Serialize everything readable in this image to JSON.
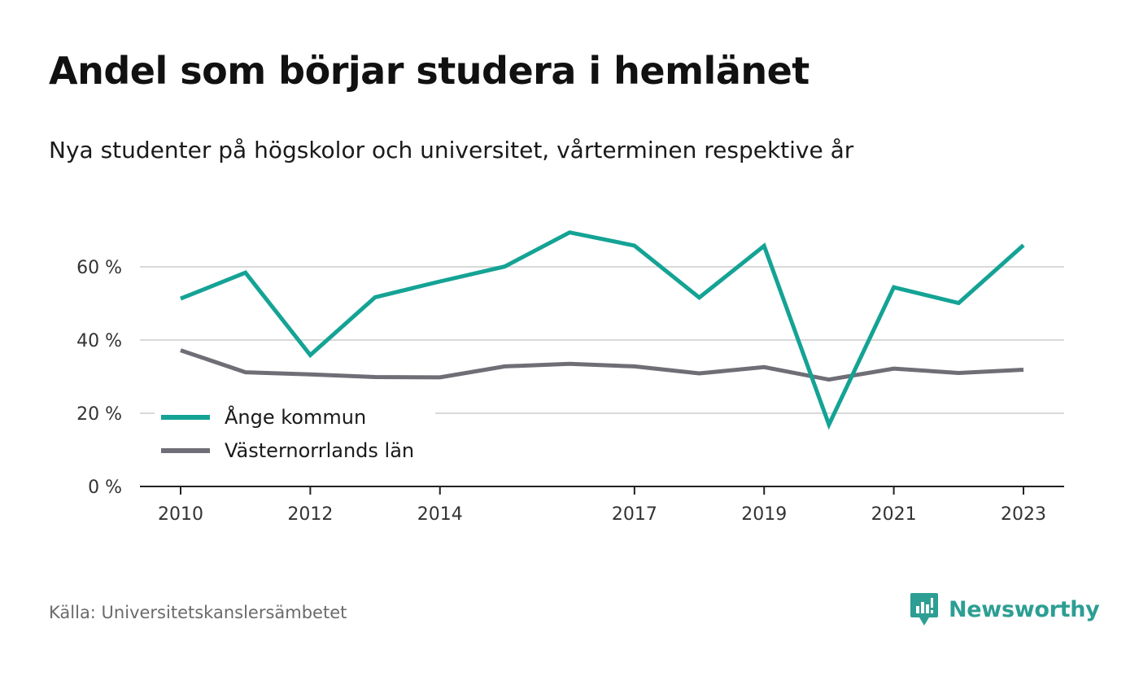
{
  "header": {
    "title": "Andel som börjar studera i hemlänet",
    "subtitle": "Nya studenter på högskolor och universitet, vårterminen respektive år"
  },
  "footer": {
    "source": "Källa: Universitetskanslersämbetet",
    "brand": "Newsworthy"
  },
  "colors": {
    "accent": "#14a395",
    "secondary": "#6f6e76",
    "grid": "#d9d9d9",
    "axis": "#222222",
    "brand": "#2d9e93"
  },
  "chart_data": {
    "type": "line",
    "x": [
      2010,
      2011,
      2012,
      2013,
      2014,
      2015,
      2016,
      2017,
      2018,
      2019,
      2020,
      2021,
      2022,
      2023
    ],
    "x_tick_labels": [
      "2010",
      "2012",
      "2014",
      "2017",
      "2019",
      "2021",
      "2023"
    ],
    "y_ticks": [
      0,
      20,
      40,
      60
    ],
    "y_tick_labels": [
      "0 %",
      "20 %",
      "40 %",
      "60 %"
    ],
    "ylim": [
      0,
      70
    ],
    "grid": true,
    "legend_position": "bottom-left",
    "series": [
      {
        "name": "Ånge kommun",
        "color": "#14a395",
        "values": [
          51.3,
          58.4,
          35.9,
          51.7,
          56,
          60.1,
          69.4,
          65.8,
          51.6,
          65.7,
          16.9,
          54.4,
          50.1,
          65.9
        ]
      },
      {
        "name": "Västernorrlands län",
        "color": "#6f6e76",
        "values": [
          37.2,
          31.2,
          30.6,
          29.9,
          29.8,
          32.8,
          33.5,
          32.8,
          30.9,
          32.6,
          29.2,
          32.2,
          31.0,
          31.9
        ]
      }
    ]
  }
}
